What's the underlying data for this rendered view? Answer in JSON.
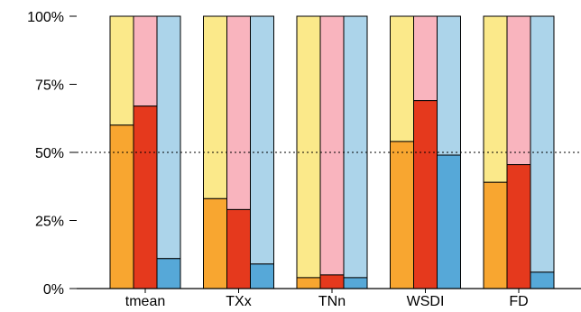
{
  "chart_data": {
    "type": "bar",
    "stacked_to_100": true,
    "categories": [
      "tmean",
      "TXx",
      "TNn",
      "WSDI",
      "FD"
    ],
    "ylim": [
      0,
      100
    ],
    "yticks": [
      0,
      25,
      50,
      75,
      100
    ],
    "ytick_labels": [
      "0%",
      "25%",
      "50%",
      "75%",
      "100%"
    ],
    "reference_line": {
      "value": 50,
      "style": "dotted"
    },
    "grid": false,
    "series": [
      {
        "values": [
          60,
          33,
          4,
          54,
          39
        ],
        "color": "#f8a630",
        "remainder_color": "#fbe98a"
      },
      {
        "values": [
          67,
          29,
          5,
          69,
          45.5
        ],
        "color": "#e5391d",
        "remainder_color": "#f9b4be"
      },
      {
        "values": [
          11,
          9,
          4,
          49,
          6
        ],
        "color": "#56a8d8",
        "remainder_color": "#acd4ea"
      }
    ]
  }
}
